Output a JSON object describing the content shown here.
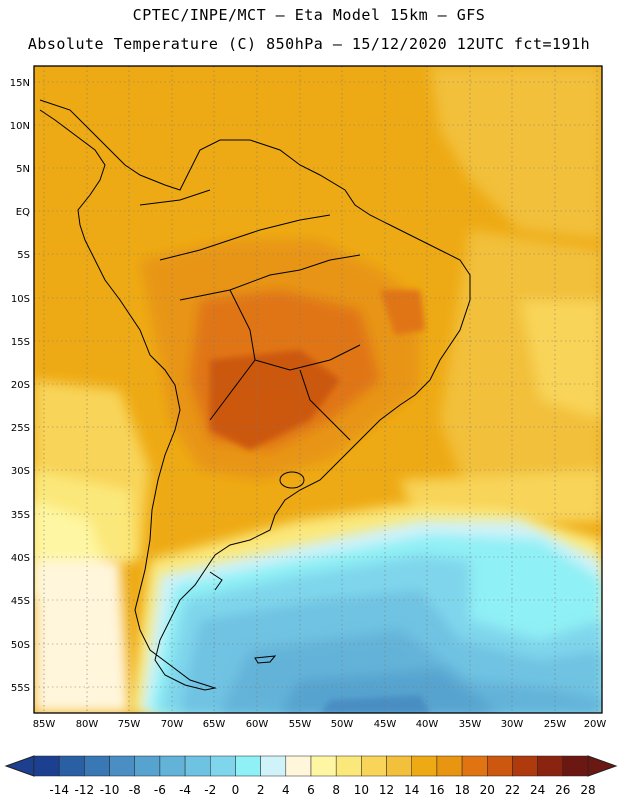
{
  "header": {
    "line1": "CPTEC/INPE/MCT –  Eta Model 15km – GFS",
    "line2": "Absolute Temperature (C) 850hPa – 15/12/2020 12UTC fct=191h"
  },
  "map": {
    "lat_labels": [
      "15N",
      "10N",
      "5N",
      "EQ",
      "5S",
      "10S",
      "15S",
      "20S",
      "25S",
      "30S",
      "35S",
      "40S",
      "45S",
      "50S",
      "55S"
    ],
    "lon_labels": [
      "85W",
      "80W",
      "75W",
      "70W",
      "65W",
      "60W",
      "55W",
      "50W",
      "45W",
      "40W",
      "35W",
      "30W",
      "25W",
      "20W"
    ],
    "region": "South America",
    "variable": "Absolute Temperature at 850hPa",
    "units": "C"
  },
  "colorbar": {
    "labels": [
      "-14",
      "-12",
      "-10",
      "-8",
      "-6",
      "-4",
      "-2",
      "0",
      "2",
      "4",
      "6",
      "8",
      "10",
      "12",
      "14",
      "16",
      "18",
      "20",
      "22",
      "24",
      "26",
      "28"
    ],
    "colors": [
      "#1c3f8f",
      "#2a5fa3",
      "#3a78b5",
      "#4a8ec3",
      "#57a3cf",
      "#63b3d9",
      "#6fc3e2",
      "#7fd6ec",
      "#8ff0f5",
      "#d0f2f9",
      "#fff6dc",
      "#fef6a2",
      "#fbe87a",
      "#f8d458",
      "#f2c03a",
      "#eeaa14",
      "#e89512",
      "#e07412",
      "#cc5810",
      "#ae3a0e",
      "#8a2410",
      "#6b1812"
    ]
  }
}
